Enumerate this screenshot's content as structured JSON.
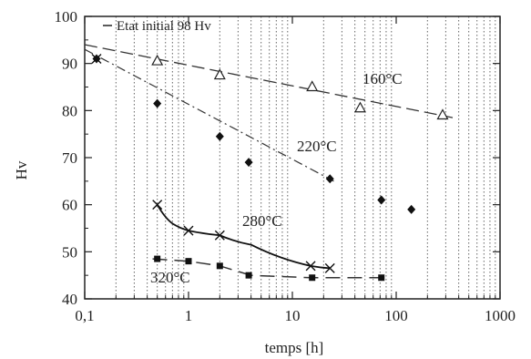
{
  "chart_data": {
    "type": "scatter",
    "xlabel": "temps [h]",
    "ylabel": "Hv",
    "xscale": "log",
    "xlim": [
      0.1,
      1000
    ],
    "ylim": [
      40,
      100
    ],
    "xticks": [
      0.1,
      1,
      10,
      100,
      1000
    ],
    "xtick_labels": [
      "0,1",
      "1",
      "10",
      "100",
      "1000"
    ],
    "yticks": [
      40,
      50,
      60,
      70,
      80,
      90,
      100
    ],
    "ytick_labels": [
      "40",
      "50",
      "60",
      "70",
      "80",
      "90",
      "100"
    ],
    "grid": "vertical-minor-dotted",
    "legend": {
      "text": "Etat initial 98 Hv",
      "placement": "top-left"
    },
    "series": [
      {
        "label": "160°C",
        "marker": "triangle-open",
        "x": [
          0.5,
          2,
          15.5,
          45,
          280
        ],
        "y": [
          90.5,
          87.5,
          85,
          80.5,
          79
        ]
      },
      {
        "label": "220°C",
        "marker": "diamond-filled",
        "x": [
          0.13,
          0.5,
          2,
          3.8,
          23,
          72,
          140
        ],
        "y": [
          91,
          81.5,
          74.5,
          69,
          65.5,
          61,
          59
        ]
      },
      {
        "label": "280°C",
        "marker": "x",
        "x": [
          0.13,
          0.5,
          1,
          2,
          15,
          23
        ],
        "y": [
          91,
          60,
          54.5,
          53.5,
          47,
          46.5
        ]
      },
      {
        "label": "320°C",
        "marker": "square-filled",
        "x": [
          0.5,
          1,
          2,
          3.8,
          15.5,
          72
        ],
        "y": [
          48.5,
          48,
          47,
          45,
          44.5,
          44.5
        ]
      }
    ],
    "trend_lines": {
      "160": {
        "x": [
          0.1,
          350
        ],
        "y": [
          94,
          78.5
        ]
      },
      "220": {
        "x": [
          0.1,
          25
        ],
        "y": [
          93,
          65
        ]
      },
      "280": {
        "x": [
          0.5,
          0.7,
          1,
          2,
          4,
          15,
          23
        ],
        "y": [
          60,
          56,
          54.5,
          53.5,
          51.5,
          47,
          46.5
        ]
      },
      "320": {
        "x": [
          0.45,
          1,
          2,
          4,
          15,
          75
        ],
        "y": [
          48.5,
          48,
          47,
          45,
          44.5,
          44.5
        ]
      }
    }
  }
}
